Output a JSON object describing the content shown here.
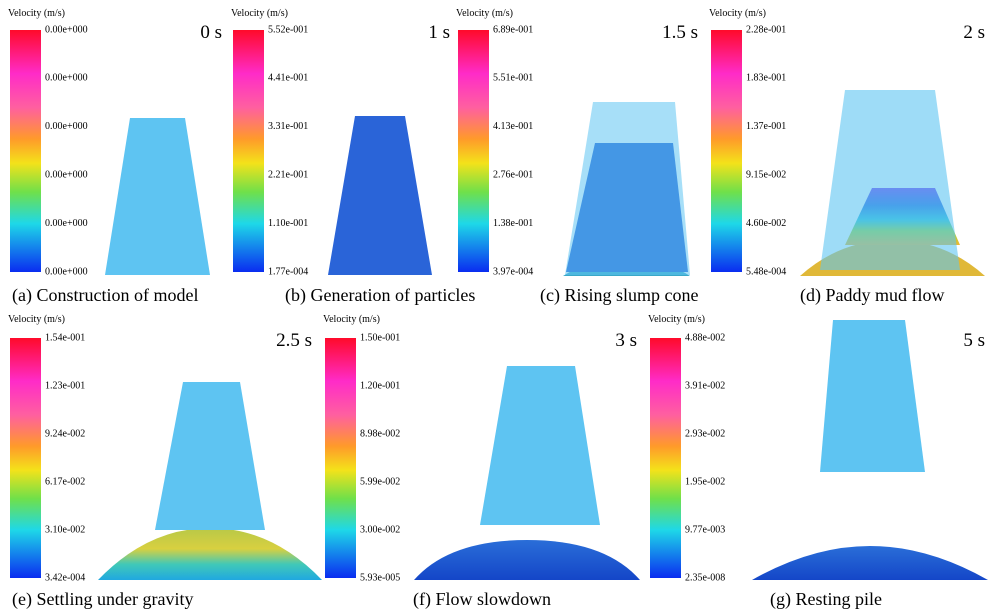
{
  "panels": [
    {
      "caption": "(a) Construction of model",
      "time": "0 s",
      "colorbar_title": "Velocity (m/s)",
      "colorbar_labels": [
        "0.00e+000",
        "0.00e+000",
        "0.00e+000",
        "0.00e+000",
        "0.00e+000",
        "0.00e+000"
      ]
    },
    {
      "caption": "(b) Generation of particles",
      "time": "1 s",
      "colorbar_title": "Velocity (m/s)",
      "colorbar_labels": [
        "5.52e-001",
        "4.41e-001",
        "3.31e-001",
        "2.21e-001",
        "1.10e-001",
        "1.77e-004"
      ]
    },
    {
      "caption": "(c) Rising slump cone",
      "time": "1.5 s",
      "colorbar_title": "Velocity (m/s)",
      "colorbar_labels": [
        "6.89e-001",
        "5.51e-001",
        "4.13e-001",
        "2.76e-001",
        "1.38e-001",
        "3.97e-004"
      ]
    },
    {
      "caption": "(d) Paddy mud flow",
      "time": "2 s",
      "colorbar_title": "Velocity (m/s)",
      "colorbar_labels": [
        "2.28e-001",
        "1.83e-001",
        "1.37e-001",
        "9.15e-002",
        "4.60e-002",
        "5.48e-004"
      ]
    },
    {
      "caption": "(e) Settling under gravity",
      "time": "2.5 s",
      "colorbar_title": "Velocity (m/s)",
      "colorbar_labels": [
        "1.54e-001",
        "1.23e-001",
        "9.24e-002",
        "6.17e-002",
        "3.10e-002",
        "3.42e-004"
      ]
    },
    {
      "caption": "(f) Flow slowdown",
      "time": "3 s",
      "colorbar_title": "Velocity (m/s)",
      "colorbar_labels": [
        "1.50e-001",
        "1.20e-001",
        "8.98e-002",
        "5.99e-002",
        "3.00e-002",
        "5.93e-005"
      ]
    },
    {
      "caption": "(g) Resting pile",
      "time": "5 s",
      "colorbar_title": "Velocity (m/s)",
      "colorbar_labels": [
        "4.88e-002",
        "3.91e-002",
        "2.93e-002",
        "1.95e-002",
        "9.77e-003",
        "2.35e-008"
      ]
    }
  ]
}
